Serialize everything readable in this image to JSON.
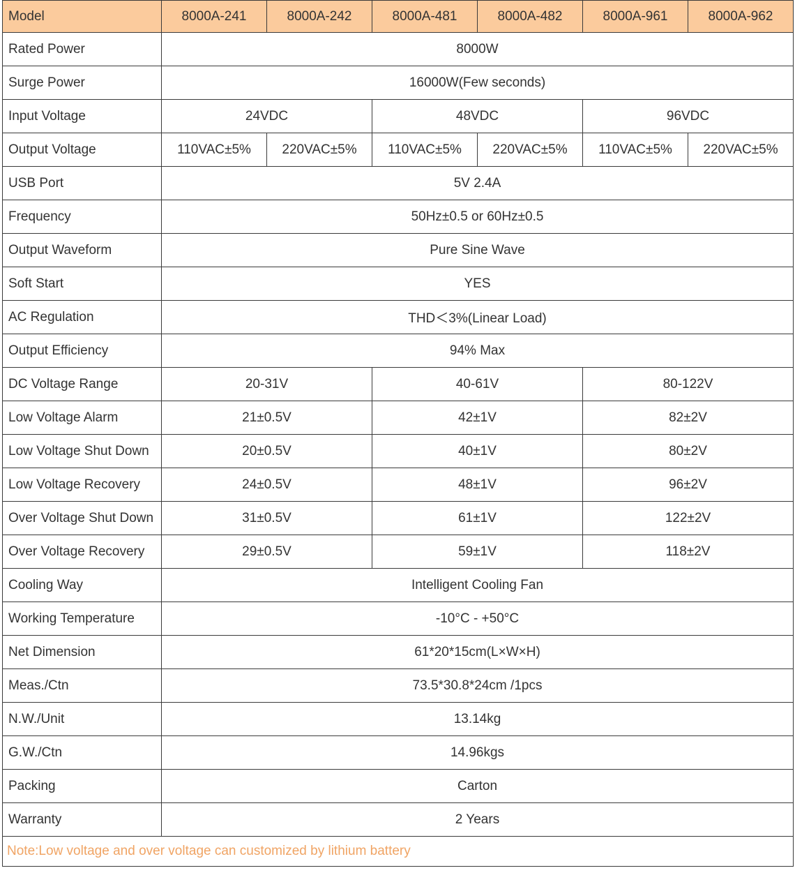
{
  "table": {
    "header": [
      "Model",
      "8000A-241",
      "8000A-242",
      "8000A-481",
      "8000A-482",
      "8000A-961",
      "8000A-962"
    ],
    "rows": [
      [
        "Rated Power",
        "8000W"
      ],
      [
        "Surge Power",
        "16000W(Few seconds)"
      ],
      [
        "Input Voltage",
        "24VDC",
        "48VDC",
        "96VDC"
      ],
      [
        "Output Voltage",
        "110VAC±5%",
        "220VAC±5%",
        "110VAC±5%",
        "220VAC±5%",
        "110VAC±5%",
        "220VAC±5%"
      ],
      [
        "USB Port",
        "5V 2.4A"
      ],
      [
        "Frequency",
        "50Hz±0.5 or 60Hz±0.5"
      ],
      [
        "Output Waveform",
        "Pure Sine Wave"
      ],
      [
        "Soft Start",
        "YES"
      ],
      [
        "AC Regulation",
        "THD＜3%(Linear Load)"
      ],
      [
        "Output Efficiency",
        "94% Max"
      ],
      [
        "DC Voltage Range",
        "20-31V",
        "40-61V",
        "80-122V"
      ],
      [
        "Low Voltage Alarm",
        "21±0.5V",
        "42±1V",
        "82±2V"
      ],
      [
        "Low Voltage Shut Down",
        "20±0.5V",
        "40±1V",
        "80±2V"
      ],
      [
        "Low Voltage Recovery",
        "24±0.5V",
        "48±1V",
        "96±2V"
      ],
      [
        "Over Voltage Shut Down",
        "31±0.5V",
        "61±1V",
        "122±2V"
      ],
      [
        "Over Voltage Recovery",
        "29±0.5V",
        "59±1V",
        "118±2V"
      ],
      [
        "Cooling Way",
        "Intelligent Cooling Fan"
      ],
      [
        "Working Temperature",
        "-10°C - +50°C"
      ],
      [
        "Net Dimension",
        "61*20*15cm(L×W×H)"
      ],
      [
        "Meas./Ctn",
        "73.5*30.8*24cm /1pcs"
      ],
      [
        "N.W./Unit",
        "13.14kg"
      ],
      [
        "G.W./Ctn",
        "14.96kgs"
      ],
      [
        "Packing",
        "Carton"
      ],
      [
        "Warranty",
        "2 Years"
      ]
    ],
    "note": "Note:Low voltage and over voltage can customized by lithium battery"
  }
}
